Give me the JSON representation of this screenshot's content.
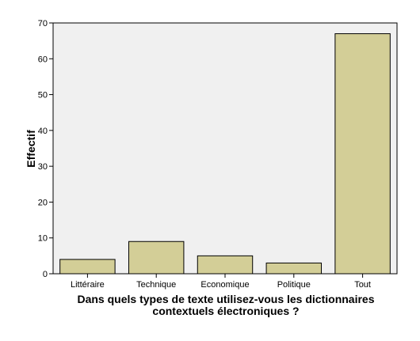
{
  "chart_data": {
    "type": "bar",
    "categories": [
      "Littéraire",
      "Technique",
      "Economique",
      "Politique",
      "Tout"
    ],
    "values": [
      4,
      9,
      5,
      3,
      67
    ],
    "ylabel": "Effectif",
    "xlabel_lines": [
      "Dans quels types de texte utilisez-vous les dictionnaires",
      "contextuels électroniques ?"
    ],
    "ylim": [
      0,
      70
    ],
    "yticks": [
      0,
      10,
      20,
      30,
      40,
      50,
      60,
      70
    ],
    "grid": false,
    "colors": {
      "bar_fill": "#d3ce97",
      "bar_stroke": "#000000",
      "plot_background": "#f0f0f0"
    }
  }
}
